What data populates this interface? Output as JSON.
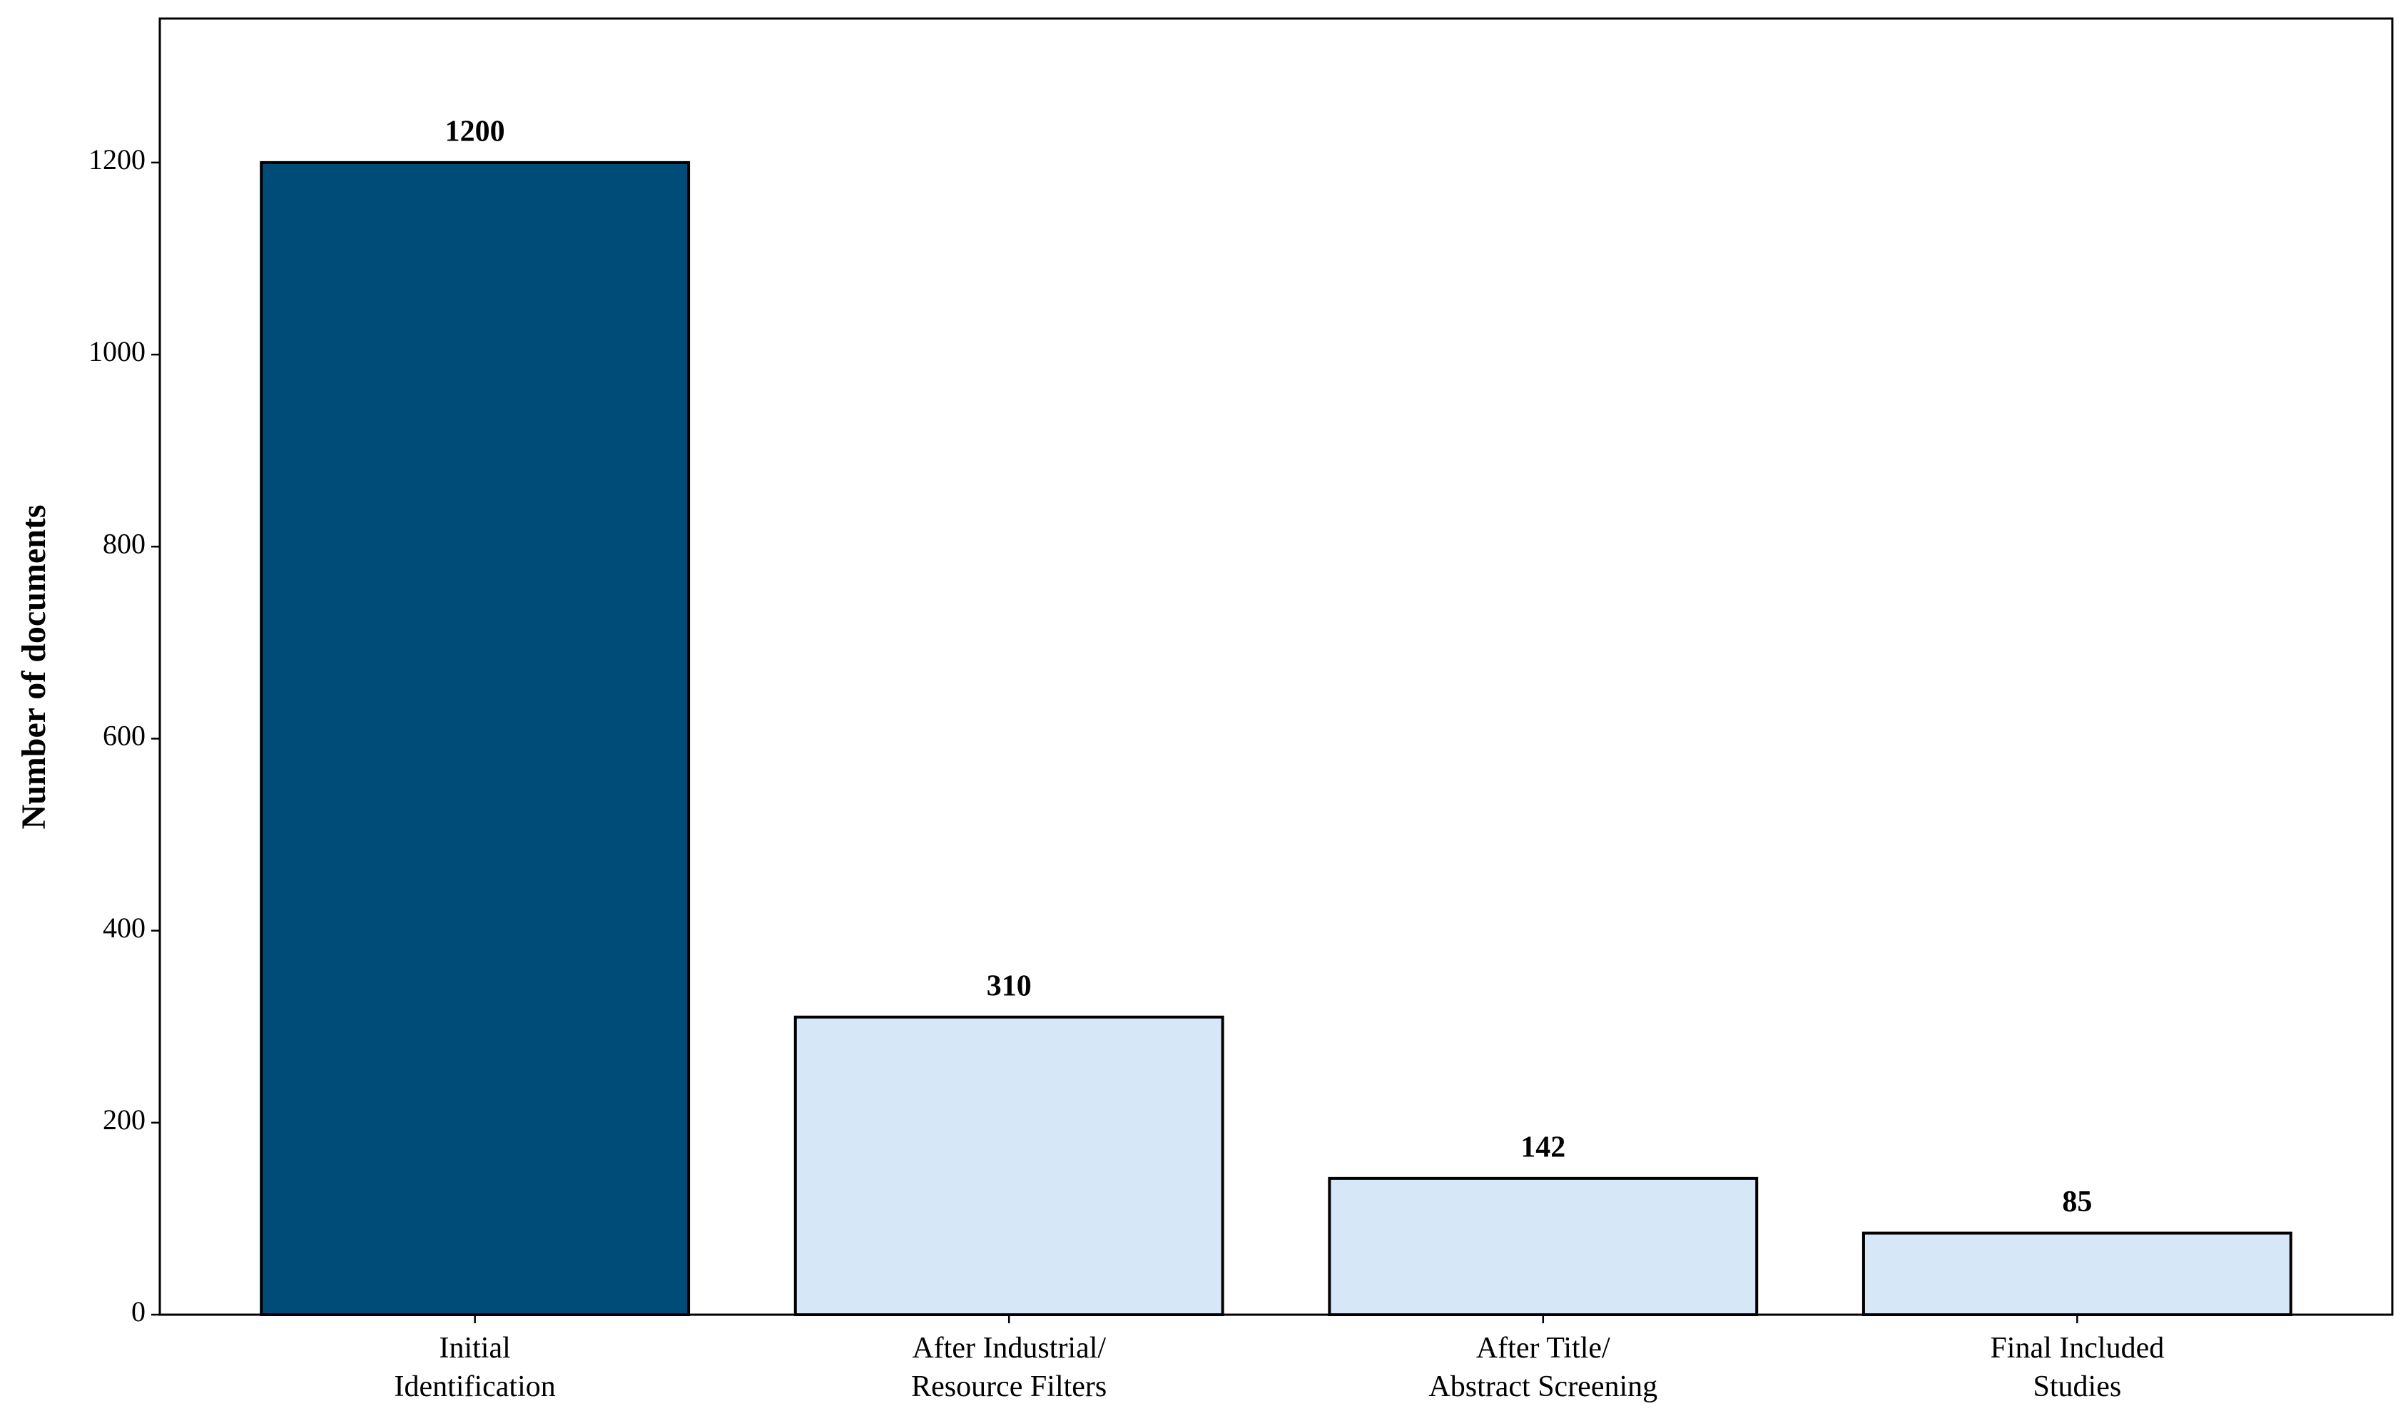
{
  "chart_data": {
    "type": "bar",
    "y_label": "Number of documents",
    "categories": [
      "Initial\nIdentification",
      "After Industrial/\nResource Filters",
      "After Title/\nAbstract Screening",
      "Final Included\nStudies"
    ],
    "values": [
      1200,
      310,
      142,
      85
    ],
    "colors": [
      "#004c78",
      "#d6e8f7",
      "#d6e8f7",
      "#d6e8f7"
    ],
    "ylim": [
      0,
      1350
    ],
    "yticks": [
      0,
      200,
      400,
      600,
      800,
      1000,
      1200
    ],
    "grid": false
  }
}
